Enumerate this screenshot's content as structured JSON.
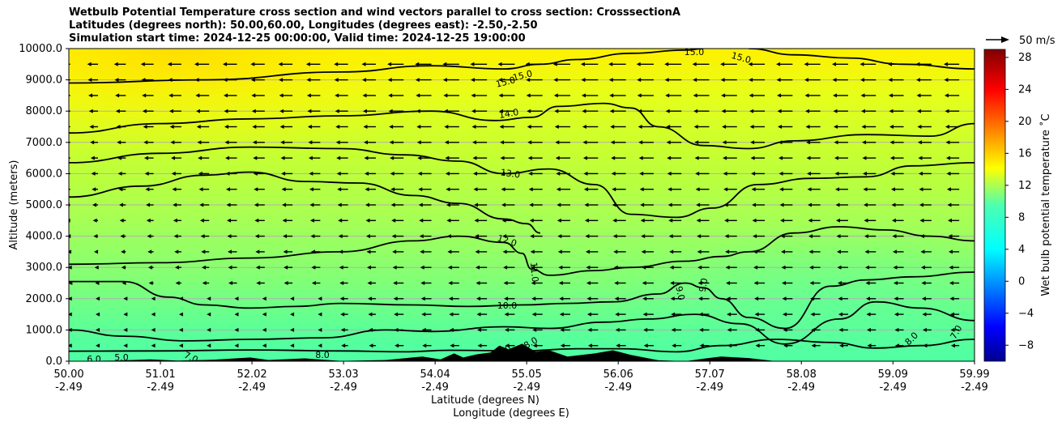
{
  "title_lines": [
    "Wetbulb Potential Temperature cross section and wind vectors parallel to cross section: CrosssectionA",
    "Latitudes (degrees north): 50.00,60.00, Longitudes (degrees east): -2.50,-2.50",
    "Simulation start time: 2024-12-25 00:00:00, Valid time: 2024-12-25 19:00:00"
  ],
  "chart_data": {
    "type": "heatmap",
    "subtype": "cross-section filled contour with contour lines and wind vectors",
    "xlabel_line1": "Latitude (degrees N)",
    "xlabel_line2": "Longitude (degrees E)",
    "ylabel": "Altitude (meters)",
    "x_ticks_lat": [
      "50.00",
      "51.01",
      "52.02",
      "53.03",
      "54.04",
      "55.05",
      "56.06",
      "57.07",
      "58.08",
      "59.09",
      "59.99"
    ],
    "x_ticks_lon": [
      "-2.49",
      "-2.49",
      "-2.49",
      "-2.49",
      "-2.49",
      "-2.49",
      "-2.49",
      "-2.49",
      "-2.49",
      "-2.49",
      "-2.49"
    ],
    "y_ticks": [
      "0.0",
      "1000.0",
      "2000.0",
      "3000.0",
      "4000.0",
      "5000.0",
      "6000.0",
      "7000.0",
      "8000.0",
      "9000.0",
      "10000.0"
    ],
    "ylim": [
      0,
      10000
    ],
    "xlim": [
      50.0,
      59.99
    ],
    "grid": "horizontal lines at y ticks",
    "colorbar": {
      "label": "Wet bulb potential temperature $^\\circ$C",
      "label_display": "Wet bulb potential temperature ˚C",
      "ticks": [
        "28",
        "24",
        "20",
        "16",
        "12",
        "8",
        "4",
        "0",
        "−4",
        "−8"
      ],
      "range": [
        -10,
        29
      ],
      "colormap": "jet"
    },
    "quiver_key": "50 m/s",
    "contour_labels": [
      "15.0",
      "15.0",
      "15.0",
      "15.0",
      "14.0",
      "13.0",
      "12.0",
      "11.0",
      "10.0",
      "9.0",
      "9.0",
      "8.0",
      "8.0",
      "8.0",
      "8.0",
      "7.0",
      "7.0",
      "6.0",
      "5.0"
    ],
    "contour_levels": [
      {
        "level": 15,
        "points": [
          [
            50.0,
            8900
          ],
          [
            51.5,
            9000
          ],
          [
            53.0,
            9250
          ],
          [
            54.0,
            9450
          ],
          [
            54.8,
            9350
          ],
          [
            55.2,
            9500
          ],
          [
            55.6,
            9650
          ],
          [
            56.2,
            9850
          ],
          [
            56.8,
            9950
          ],
          [
            57.0,
            10000
          ]
        ]
      },
      {
        "level": 15,
        "points": [
          [
            57.5,
            10000
          ],
          [
            58.0,
            9800
          ],
          [
            58.6,
            9700
          ],
          [
            59.2,
            9500
          ],
          [
            59.99,
            9350
          ]
        ]
      },
      {
        "level": 14,
        "points": [
          [
            50.0,
            7300
          ],
          [
            51.0,
            7600
          ],
          [
            52.0,
            7750
          ],
          [
            53.0,
            7850
          ],
          [
            54.0,
            8000
          ],
          [
            54.7,
            7700
          ],
          [
            55.1,
            7800
          ],
          [
            55.4,
            8150
          ],
          [
            55.9,
            8250
          ],
          [
            56.2,
            8100
          ],
          [
            56.5,
            7500
          ],
          [
            57.0,
            6900
          ],
          [
            57.5,
            6800
          ],
          [
            58.0,
            7050
          ],
          [
            58.8,
            7250
          ],
          [
            59.5,
            7200
          ],
          [
            59.99,
            7600
          ]
        ]
      },
      {
        "level": 13,
        "points": [
          [
            50.0,
            6350
          ],
          [
            51.0,
            6650
          ],
          [
            52.0,
            6850
          ],
          [
            53.0,
            6800
          ],
          [
            53.7,
            6600
          ],
          [
            54.3,
            6400
          ],
          [
            54.8,
            6000
          ],
          [
            55.3,
            6150
          ],
          [
            55.8,
            5650
          ],
          [
            56.2,
            4700
          ],
          [
            56.7,
            4600
          ],
          [
            57.1,
            4900
          ],
          [
            57.6,
            5650
          ],
          [
            58.2,
            5850
          ],
          [
            58.8,
            5900
          ],
          [
            59.3,
            6250
          ],
          [
            59.99,
            6350
          ]
        ]
      },
      {
        "level": 12,
        "points": [
          [
            50.0,
            5250
          ],
          [
            50.8,
            5600
          ],
          [
            51.5,
            5950
          ],
          [
            52.0,
            6050
          ],
          [
            52.6,
            5750
          ],
          [
            53.2,
            5700
          ],
          [
            53.8,
            5300
          ],
          [
            54.3,
            5050
          ],
          [
            54.8,
            4550
          ],
          [
            55.05,
            4400
          ],
          [
            55.2,
            4100
          ]
        ]
      },
      {
        "level": 12,
        "points": [
          [
            50.0,
            3100
          ],
          [
            51.0,
            3150
          ],
          [
            52.0,
            3300
          ],
          [
            53.0,
            3500
          ],
          [
            53.8,
            3850
          ],
          [
            54.3,
            4000
          ],
          [
            54.8,
            3800
          ],
          [
            55.0,
            3450
          ],
          [
            55.1,
            2950
          ],
          [
            55.3,
            2750
          ],
          [
            55.8,
            2900
          ],
          [
            56.2,
            3000
          ],
          [
            56.8,
            3200
          ],
          [
            57.2,
            3350
          ],
          [
            57.5,
            3500
          ],
          [
            58.0,
            4100
          ],
          [
            58.5,
            4300
          ],
          [
            59.0,
            4200
          ],
          [
            59.5,
            4000
          ],
          [
            59.99,
            3850
          ]
        ]
      },
      {
        "level": 10,
        "points": [
          [
            50.0,
            2550
          ],
          [
            50.6,
            2550
          ],
          [
            51.1,
            2050
          ],
          [
            51.5,
            1800
          ],
          [
            52.0,
            1700
          ],
          [
            52.5,
            1750
          ],
          [
            53.0,
            1850
          ],
          [
            53.8,
            1800
          ],
          [
            54.4,
            1750
          ],
          [
            55.0,
            1800
          ],
          [
            55.5,
            1850
          ],
          [
            56.0,
            1900
          ],
          [
            56.5,
            2150
          ],
          [
            56.8,
            2500
          ],
          [
            57.0,
            2350
          ],
          [
            57.2,
            2000
          ],
          [
            57.5,
            1400
          ],
          [
            57.9,
            1050
          ],
          [
            58.4,
            2400
          ],
          [
            58.8,
            2600
          ],
          [
            59.3,
            2700
          ],
          [
            59.99,
            2850
          ]
        ]
      },
      {
        "level": 9,
        "points": [
          [
            50.0,
            1000
          ],
          [
            50.6,
            800
          ],
          [
            51.3,
            650
          ],
          [
            52.0,
            700
          ],
          [
            52.8,
            750
          ],
          [
            53.5,
            1000
          ],
          [
            54.0,
            950
          ],
          [
            54.8,
            1100
          ],
          [
            55.3,
            1050
          ],
          [
            55.9,
            1250
          ],
          [
            56.4,
            1350
          ],
          [
            56.9,
            1500
          ],
          [
            57.4,
            1200
          ],
          [
            57.9,
            550
          ],
          [
            58.5,
            1350
          ],
          [
            58.9,
            1900
          ],
          [
            59.4,
            1700
          ],
          [
            59.99,
            1300
          ]
        ]
      },
      {
        "level": 8,
        "points": [
          [
            50.0,
            320
          ],
          [
            51.0,
            330
          ],
          [
            52.0,
            360
          ],
          [
            53.0,
            330
          ],
          [
            53.7,
            300
          ],
          [
            54.2,
            350
          ],
          [
            55.0,
            330
          ],
          [
            55.6,
            400
          ],
          [
            56.1,
            400
          ],
          [
            56.7,
            300
          ],
          [
            57.2,
            500
          ],
          [
            57.8,
            700
          ],
          [
            58.4,
            600
          ],
          [
            58.9,
            420
          ],
          [
            59.4,
            500
          ],
          [
            59.99,
            700
          ]
        ]
      }
    ]
  }
}
